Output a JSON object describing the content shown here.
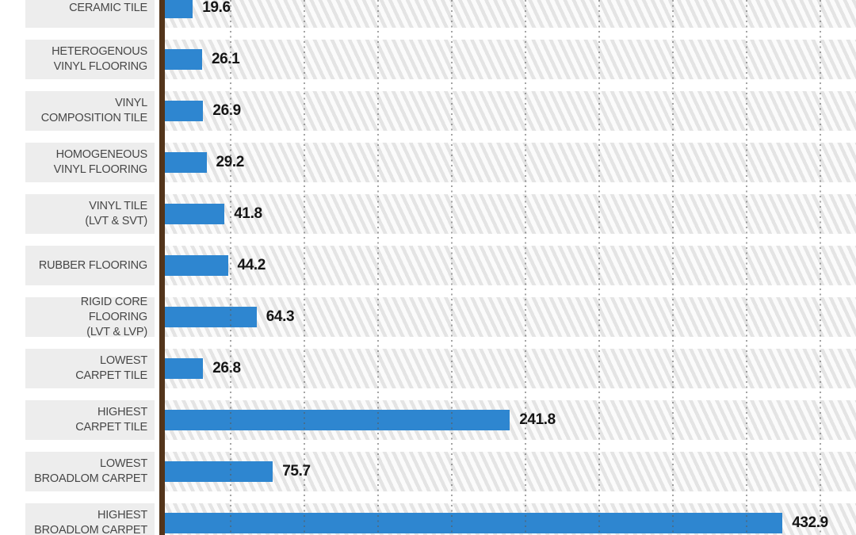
{
  "chart_data": {
    "type": "bar",
    "orientation": "horizontal",
    "title": "",
    "xlabel": "",
    "ylabel": "",
    "categories": [
      "CERAMIC TILE",
      "HETEROGENOUS\nVINYL FLOORING",
      "VINYL\nCOMPOSITION TILE",
      "HOMOGENEOUS\nVINYL FLOORING",
      "VINYL TILE\n(LVT & SVT)",
      "RUBBER FLOORING",
      "RIGID CORE FLOORING\n(LVT & LVP)",
      "LOWEST\nCARPET TILE",
      "HIGHEST\nCARPET TILE",
      "LOWEST\nBROADLOM CARPET",
      "HIGHEST\nBROADLOM CARPET"
    ],
    "values": [
      19.6,
      26.1,
      26.9,
      29.2,
      41.8,
      44.2,
      64.3,
      26.8,
      241.8,
      75.7,
      432.9
    ],
    "value_labels": [
      "19.6",
      "26.1",
      "26.9",
      "29.2",
      "41.8",
      "44.2",
      "64.3",
      "26.8",
      "241.8",
      "75.7",
      "432.9"
    ],
    "legend": [],
    "grid": "dotted-vertical-gridlines",
    "x_gridlines_estimated_units": [
      50,
      100,
      150,
      200,
      250,
      300,
      350,
      400,
      450
    ],
    "notes": "Chart is cropped: first and last category bands are partially cut off at top and bottom; no axis tick labels or title are visible in the crop.",
    "colors": {
      "bar": "#2E86D0",
      "axis_line": "#53351B",
      "label_band": "#EDEDED",
      "hatch_stripe": "#E4E4E4",
      "hatch_background": "#FBFBFB",
      "gridline_dot": "#6E6E6E",
      "value_text": "#151515",
      "label_text": "#474747",
      "background": "#FFFFFF"
    }
  }
}
